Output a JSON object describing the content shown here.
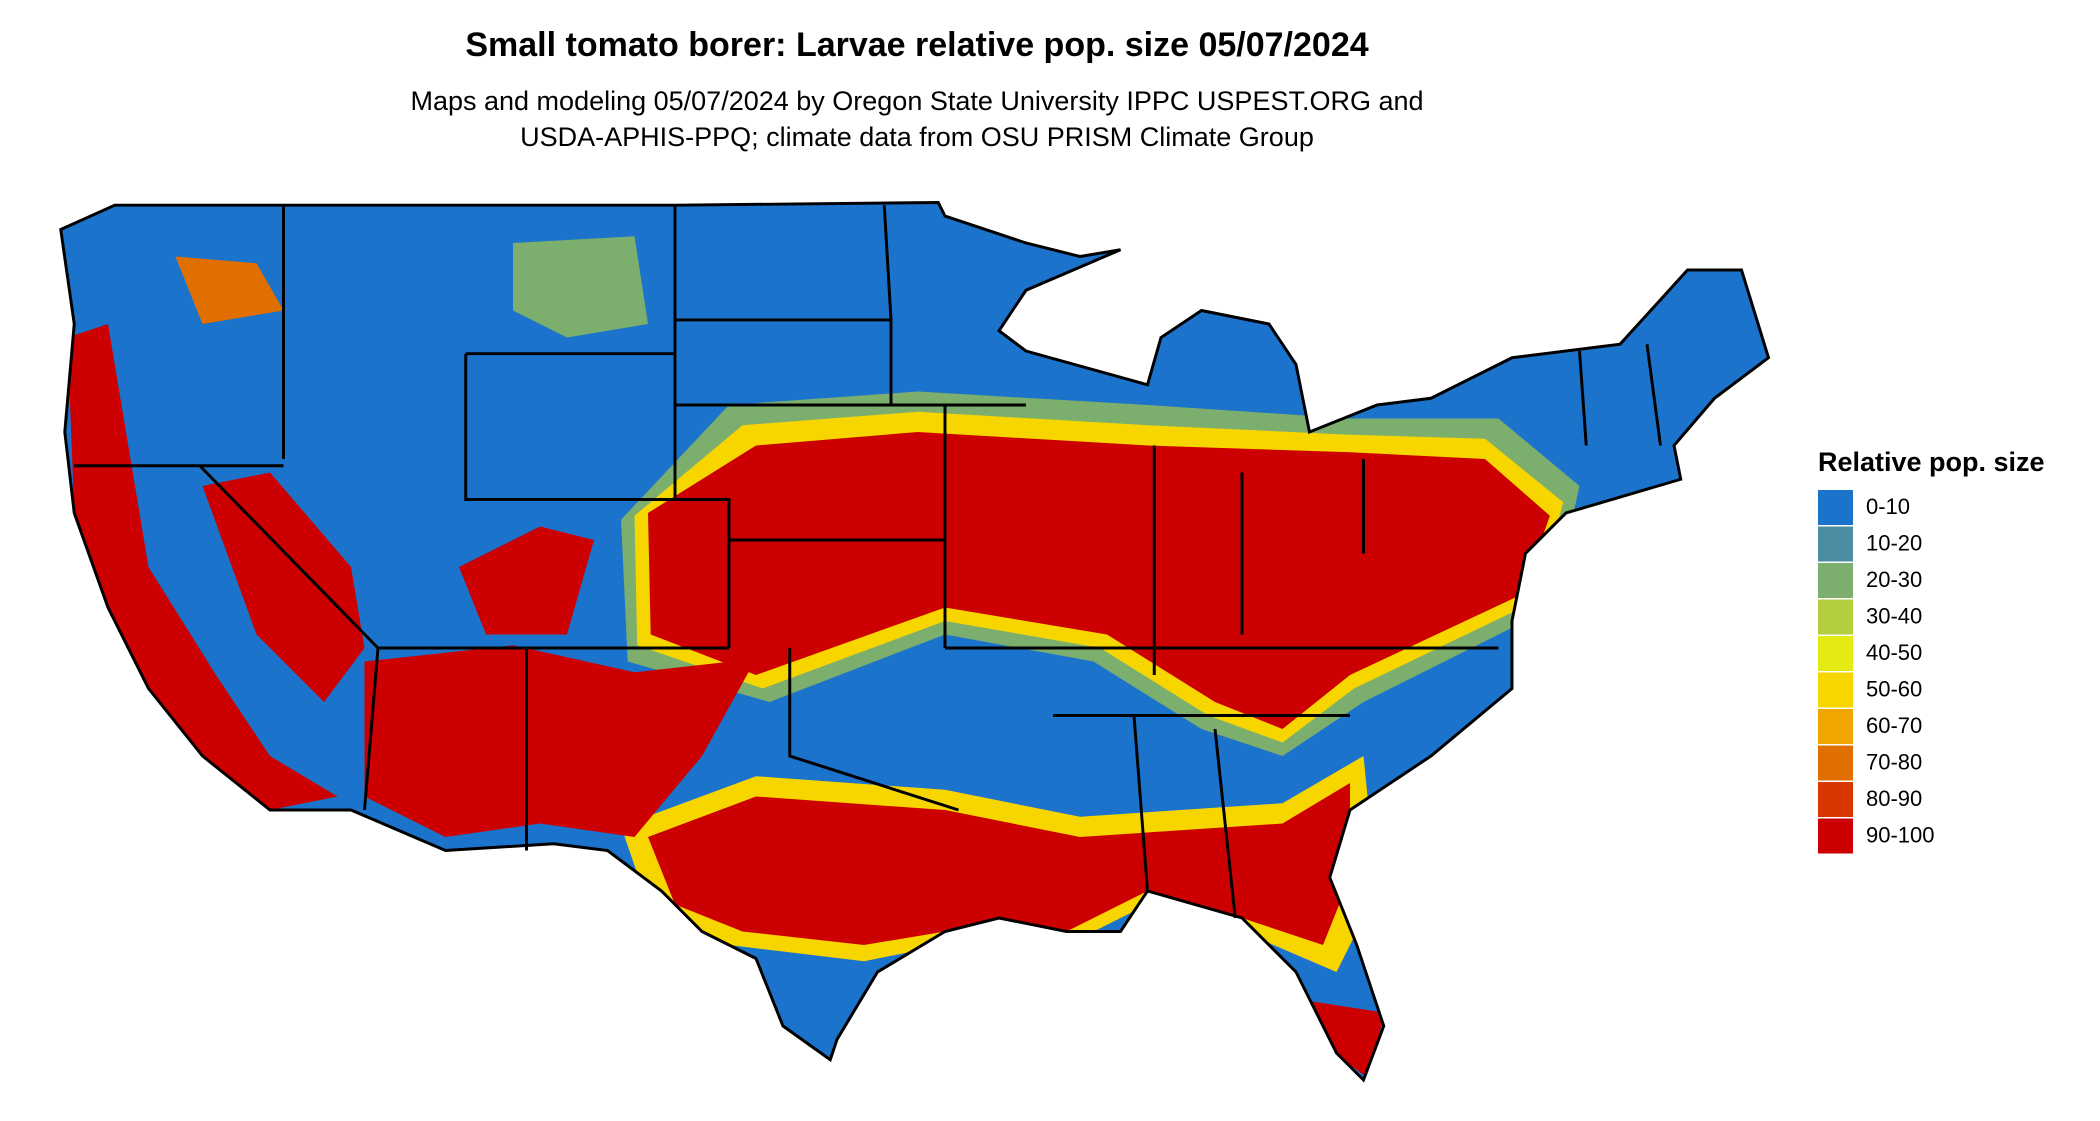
{
  "header": {
    "title": "Small tomato borer: Larvae relative pop. size 05/07/2024",
    "subtitle": [
      "Maps and modeling 05/07/2024 by Oregon State University IPPC USPEST.ORG and",
      "USDA-APHIS-PPQ; climate data from OSU PRISM Climate Group"
    ]
  },
  "legend": {
    "title": "Relative pop. size",
    "items": [
      {
        "label": "0-10",
        "color": "#1c73cc"
      },
      {
        "label": "10-20",
        "color": "#4b8ea3"
      },
      {
        "label": "20-30",
        "color": "#7caf6e"
      },
      {
        "label": "30-40",
        "color": "#b3cf3f"
      },
      {
        "label": "40-50",
        "color": "#e4eb12"
      },
      {
        "label": "50-60",
        "color": "#f7d600"
      },
      {
        "label": "60-70",
        "color": "#f0a600"
      },
      {
        "label": "70-80",
        "color": "#e06f00"
      },
      {
        "label": "80-90",
        "color": "#d83800"
      },
      {
        "label": "90-100",
        "color": "#cc0000"
      }
    ]
  }
}
